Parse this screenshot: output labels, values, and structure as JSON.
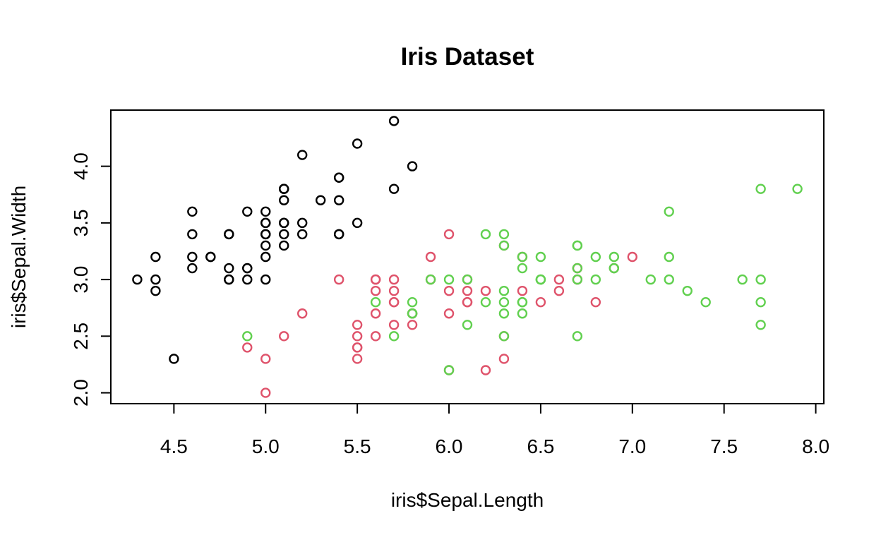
{
  "chart_data": {
    "type": "scatter",
    "title": "Iris Dataset",
    "xlabel": "iris$Sepal.Length",
    "ylabel": "iris$Sepal.Width",
    "xlim": [
      4.3,
      7.9
    ],
    "ylim": [
      2.0,
      4.4
    ],
    "x_ticks": [
      4.5,
      5.0,
      5.5,
      6.0,
      6.5,
      7.0,
      7.5,
      8.0
    ],
    "x_tick_labels": [
      "4.5",
      "5.0",
      "5.5",
      "6.0",
      "6.5",
      "7.0",
      "7.5",
      "8.0"
    ],
    "y_ticks": [
      2.0,
      2.5,
      3.0,
      3.5,
      4.0
    ],
    "y_tick_labels": [
      "2.0",
      "2.5",
      "3.0",
      "3.5",
      "4.0"
    ],
    "grid": false,
    "legend": "none",
    "series": [
      {
        "color": "#000000",
        "points": [
          [
            5.1,
            3.5
          ],
          [
            4.9,
            3.0
          ],
          [
            4.7,
            3.2
          ],
          [
            4.6,
            3.1
          ],
          [
            5.0,
            3.6
          ],
          [
            5.4,
            3.9
          ],
          [
            4.6,
            3.4
          ],
          [
            5.0,
            3.4
          ],
          [
            4.4,
            2.9
          ],
          [
            4.9,
            3.1
          ],
          [
            5.4,
            3.7
          ],
          [
            4.8,
            3.4
          ],
          [
            4.8,
            3.0
          ],
          [
            4.3,
            3.0
          ],
          [
            5.8,
            4.0
          ],
          [
            5.7,
            4.4
          ],
          [
            5.4,
            3.9
          ],
          [
            5.1,
            3.5
          ],
          [
            5.7,
            3.8
          ],
          [
            5.1,
            3.8
          ],
          [
            5.4,
            3.4
          ],
          [
            5.1,
            3.7
          ],
          [
            4.6,
            3.6
          ],
          [
            5.1,
            3.3
          ],
          [
            4.8,
            3.4
          ],
          [
            5.0,
            3.0
          ],
          [
            5.0,
            3.4
          ],
          [
            5.2,
            3.5
          ],
          [
            5.2,
            3.4
          ],
          [
            4.7,
            3.2
          ],
          [
            4.8,
            3.1
          ],
          [
            5.4,
            3.4
          ],
          [
            5.2,
            4.1
          ],
          [
            5.5,
            4.2
          ],
          [
            4.9,
            3.1
          ],
          [
            5.0,
            3.2
          ],
          [
            5.5,
            3.5
          ],
          [
            4.9,
            3.6
          ],
          [
            4.4,
            3.0
          ],
          [
            5.1,
            3.4
          ],
          [
            5.0,
            3.5
          ],
          [
            4.5,
            2.3
          ],
          [
            4.4,
            3.2
          ],
          [
            5.0,
            3.5
          ],
          [
            5.1,
            3.8
          ],
          [
            4.8,
            3.0
          ],
          [
            5.1,
            3.8
          ],
          [
            4.6,
            3.2
          ],
          [
            5.3,
            3.7
          ],
          [
            5.0,
            3.3
          ]
        ]
      },
      {
        "color": "#DF536B",
        "points": [
          [
            7.0,
            3.2
          ],
          [
            6.4,
            3.2
          ],
          [
            6.9,
            3.1
          ],
          [
            5.5,
            2.3
          ],
          [
            6.5,
            2.8
          ],
          [
            5.7,
            2.8
          ],
          [
            6.3,
            3.3
          ],
          [
            4.9,
            2.4
          ],
          [
            6.6,
            2.9
          ],
          [
            5.2,
            2.7
          ],
          [
            5.0,
            2.0
          ],
          [
            5.9,
            3.0
          ],
          [
            6.0,
            2.2
          ],
          [
            6.1,
            2.9
          ],
          [
            5.6,
            2.9
          ],
          [
            6.7,
            3.1
          ],
          [
            5.6,
            3.0
          ],
          [
            5.8,
            2.7
          ],
          [
            6.2,
            2.2
          ],
          [
            5.6,
            2.5
          ],
          [
            5.9,
            3.2
          ],
          [
            6.1,
            2.8
          ],
          [
            6.3,
            2.5
          ],
          [
            6.1,
            2.8
          ],
          [
            6.4,
            2.9
          ],
          [
            6.6,
            3.0
          ],
          [
            6.8,
            2.8
          ],
          [
            6.7,
            3.0
          ],
          [
            6.0,
            2.9
          ],
          [
            5.7,
            2.6
          ],
          [
            5.5,
            2.4
          ],
          [
            5.5,
            2.4
          ],
          [
            5.8,
            2.7
          ],
          [
            6.0,
            2.7
          ],
          [
            5.4,
            3.0
          ],
          [
            6.0,
            3.4
          ],
          [
            6.7,
            3.1
          ],
          [
            6.3,
            2.3
          ],
          [
            5.6,
            3.0
          ],
          [
            5.5,
            2.5
          ],
          [
            5.5,
            2.6
          ],
          [
            6.1,
            3.0
          ],
          [
            5.8,
            2.6
          ],
          [
            5.0,
            2.3
          ],
          [
            5.6,
            2.7
          ],
          [
            5.7,
            3.0
          ],
          [
            5.7,
            2.9
          ],
          [
            6.2,
            2.9
          ],
          [
            5.1,
            2.5
          ],
          [
            5.7,
            2.8
          ]
        ]
      },
      {
        "color": "#61D04F",
        "points": [
          [
            6.3,
            3.3
          ],
          [
            5.8,
            2.7
          ],
          [
            7.1,
            3.0
          ],
          [
            6.3,
            2.9
          ],
          [
            6.5,
            3.0
          ],
          [
            7.6,
            3.0
          ],
          [
            4.9,
            2.5
          ],
          [
            7.3,
            2.9
          ],
          [
            6.7,
            2.5
          ],
          [
            7.2,
            3.6
          ],
          [
            6.5,
            3.2
          ],
          [
            6.4,
            2.7
          ],
          [
            6.8,
            3.0
          ],
          [
            5.7,
            2.5
          ],
          [
            5.8,
            2.8
          ],
          [
            6.4,
            3.2
          ],
          [
            6.5,
            3.0
          ],
          [
            7.7,
            3.8
          ],
          [
            7.7,
            2.6
          ],
          [
            6.0,
            2.2
          ],
          [
            6.9,
            3.2
          ],
          [
            5.6,
            2.8
          ],
          [
            7.7,
            2.8
          ],
          [
            6.3,
            2.7
          ],
          [
            6.7,
            3.3
          ],
          [
            7.2,
            3.2
          ],
          [
            6.2,
            2.8
          ],
          [
            6.1,
            3.0
          ],
          [
            6.4,
            2.8
          ],
          [
            7.2,
            3.0
          ],
          [
            7.4,
            2.8
          ],
          [
            7.9,
            3.8
          ],
          [
            6.4,
            2.8
          ],
          [
            6.3,
            2.8
          ],
          [
            6.1,
            2.6
          ],
          [
            7.7,
            3.0
          ],
          [
            6.3,
            3.4
          ],
          [
            6.4,
            3.1
          ],
          [
            6.0,
            3.0
          ],
          [
            6.9,
            3.1
          ],
          [
            6.7,
            3.1
          ],
          [
            6.9,
            3.1
          ],
          [
            5.8,
            2.7
          ],
          [
            6.8,
            3.2
          ],
          [
            6.7,
            3.3
          ],
          [
            6.7,
            3.0
          ],
          [
            6.3,
            2.5
          ],
          [
            6.5,
            3.0
          ],
          [
            6.2,
            3.4
          ],
          [
            5.9,
            3.0
          ]
        ]
      }
    ]
  }
}
